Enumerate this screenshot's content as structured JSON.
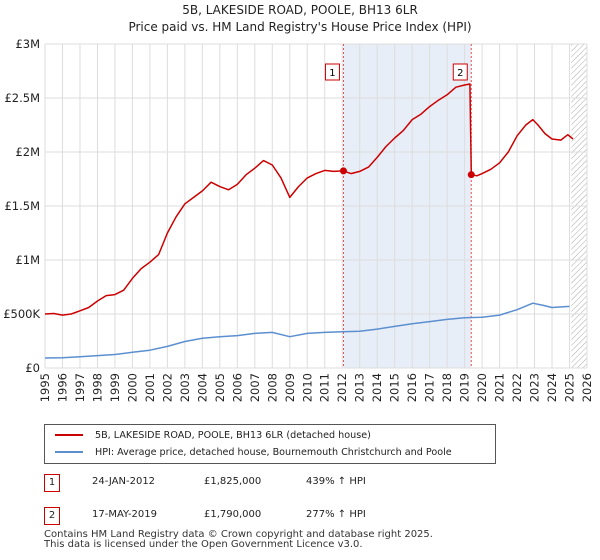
{
  "colors": {
    "property_line": "#cc0000",
    "hpi_line": "#5b8fd0",
    "shade": "#e8eef8",
    "grid": "#dddddd",
    "marker_line": "#e05050",
    "forecast_hatch": "#aaaaaa"
  },
  "chart_data": {
    "type": "line",
    "title": "5B, LAKESIDE ROAD, POOLE, BH13 6LR",
    "subtitle": "Price paid vs. HM Land Registry's House Price Index (HPI)",
    "xlabel": "",
    "ylabel": "",
    "xlim": [
      1995,
      2026
    ],
    "ylim": [
      0,
      3000000
    ],
    "x_ticks": [
      1995,
      1996,
      1997,
      1998,
      1999,
      2000,
      2001,
      2002,
      2003,
      2004,
      2005,
      2006,
      2007,
      2008,
      2009,
      2010,
      2011,
      2012,
      2013,
      2014,
      2015,
      2016,
      2017,
      2018,
      2019,
      2020,
      2021,
      2022,
      2023,
      2024,
      2025,
      2026
    ],
    "y_ticks": [
      {
        "value": 0,
        "label": "£0"
      },
      {
        "value": 500000,
        "label": "£500K"
      },
      {
        "value": 1000000,
        "label": "£1M"
      },
      {
        "value": 1500000,
        "label": "£1.5M"
      },
      {
        "value": 2000000,
        "label": "£2M"
      },
      {
        "value": 2500000,
        "label": "£2.5M"
      },
      {
        "value": 3000000,
        "label": "£3M"
      }
    ],
    "grid": true,
    "shaded_range": [
      2012.07,
      2019.38
    ],
    "forecast_start": 2025.1,
    "series": [
      {
        "name": "5B, LAKESIDE ROAD, POOLE, BH13 6LR (detached house)",
        "color": "#cc0000",
        "points": [
          [
            1995.0,
            500000
          ],
          [
            1995.5,
            505000
          ],
          [
            1996.0,
            490000
          ],
          [
            1996.5,
            500000
          ],
          [
            1997.0,
            530000
          ],
          [
            1997.5,
            560000
          ],
          [
            1998.0,
            620000
          ],
          [
            1998.5,
            670000
          ],
          [
            1999.0,
            680000
          ],
          [
            1999.5,
            720000
          ],
          [
            2000.0,
            830000
          ],
          [
            2000.5,
            920000
          ],
          [
            2001.0,
            980000
          ],
          [
            2001.5,
            1050000
          ],
          [
            2002.0,
            1250000
          ],
          [
            2002.5,
            1400000
          ],
          [
            2003.0,
            1520000
          ],
          [
            2003.5,
            1580000
          ],
          [
            2004.0,
            1640000
          ],
          [
            2004.5,
            1720000
          ],
          [
            2005.0,
            1680000
          ],
          [
            2005.5,
            1650000
          ],
          [
            2006.0,
            1700000
          ],
          [
            2006.5,
            1790000
          ],
          [
            2007.0,
            1850000
          ],
          [
            2007.5,
            1920000
          ],
          [
            2008.0,
            1880000
          ],
          [
            2008.5,
            1760000
          ],
          [
            2009.0,
            1580000
          ],
          [
            2009.5,
            1680000
          ],
          [
            2010.0,
            1760000
          ],
          [
            2010.5,
            1800000
          ],
          [
            2011.0,
            1830000
          ],
          [
            2011.5,
            1820000
          ],
          [
            2012.07,
            1825000
          ],
          [
            2012.5,
            1800000
          ],
          [
            2013.0,
            1820000
          ],
          [
            2013.5,
            1860000
          ],
          [
            2014.0,
            1950000
          ],
          [
            2014.5,
            2050000
          ],
          [
            2015.0,
            2130000
          ],
          [
            2015.5,
            2200000
          ],
          [
            2016.0,
            2300000
          ],
          [
            2016.5,
            2350000
          ],
          [
            2017.0,
            2420000
          ],
          [
            2017.5,
            2480000
          ],
          [
            2018.0,
            2530000
          ],
          [
            2018.5,
            2600000
          ],
          [
            2019.0,
            2620000
          ],
          [
            2019.3,
            2630000
          ],
          [
            2019.38,
            1790000
          ],
          [
            2019.7,
            1780000
          ],
          [
            2020.0,
            1800000
          ],
          [
            2020.5,
            1840000
          ],
          [
            2021.0,
            1900000
          ],
          [
            2021.5,
            2000000
          ],
          [
            2022.0,
            2150000
          ],
          [
            2022.5,
            2250000
          ],
          [
            2022.9,
            2300000
          ],
          [
            2023.2,
            2250000
          ],
          [
            2023.6,
            2170000
          ],
          [
            2024.0,
            2120000
          ],
          [
            2024.5,
            2110000
          ],
          [
            2024.9,
            2160000
          ],
          [
            2025.2,
            2120000
          ]
        ]
      },
      {
        "name": "HPI: Average price, detached house, Bournemouth Christchurch and Poole",
        "color": "#5b8fd0",
        "points": [
          [
            1995.0,
            93000
          ],
          [
            1996.0,
            95000
          ],
          [
            1997.0,
            105000
          ],
          [
            1998.0,
            115000
          ],
          [
            1999.0,
            125000
          ],
          [
            2000.0,
            145000
          ],
          [
            2001.0,
            165000
          ],
          [
            2002.0,
            200000
          ],
          [
            2003.0,
            245000
          ],
          [
            2004.0,
            275000
          ],
          [
            2005.0,
            290000
          ],
          [
            2006.0,
            300000
          ],
          [
            2007.0,
            320000
          ],
          [
            2008.0,
            330000
          ],
          [
            2009.0,
            290000
          ],
          [
            2010.0,
            320000
          ],
          [
            2011.0,
            330000
          ],
          [
            2012.0,
            335000
          ],
          [
            2013.0,
            340000
          ],
          [
            2014.0,
            360000
          ],
          [
            2015.0,
            385000
          ],
          [
            2016.0,
            410000
          ],
          [
            2017.0,
            430000
          ],
          [
            2018.0,
            450000
          ],
          [
            2019.0,
            465000
          ],
          [
            2020.0,
            470000
          ],
          [
            2021.0,
            490000
          ],
          [
            2022.0,
            540000
          ],
          [
            2022.9,
            600000
          ],
          [
            2023.5,
            580000
          ],
          [
            2024.0,
            560000
          ],
          [
            2025.0,
            570000
          ]
        ]
      }
    ],
    "annotations": [
      {
        "label": "1",
        "x": 2012.07,
        "y": 1825000
      },
      {
        "label": "2",
        "x": 2019.38,
        "y": 1790000
      }
    ]
  },
  "legend": {
    "items": [
      {
        "label": "5B, LAKESIDE ROAD, POOLE, BH13 6LR (detached house)"
      },
      {
        "label": "HPI: Average price, detached house, Bournemouth Christchurch and Poole"
      }
    ]
  },
  "sales": [
    {
      "id": "1",
      "date": "24-JAN-2012",
      "price": "£1,825,000",
      "hpi": "439% ↑ HPI"
    },
    {
      "id": "2",
      "date": "17-MAY-2019",
      "price": "£1,790,000",
      "hpi": "277% ↑ HPI"
    }
  ],
  "footer": {
    "line1": "Contains HM Land Registry data © Crown copyright and database right 2025.",
    "line2": "This data is licensed under the Open Government Licence v3.0."
  }
}
